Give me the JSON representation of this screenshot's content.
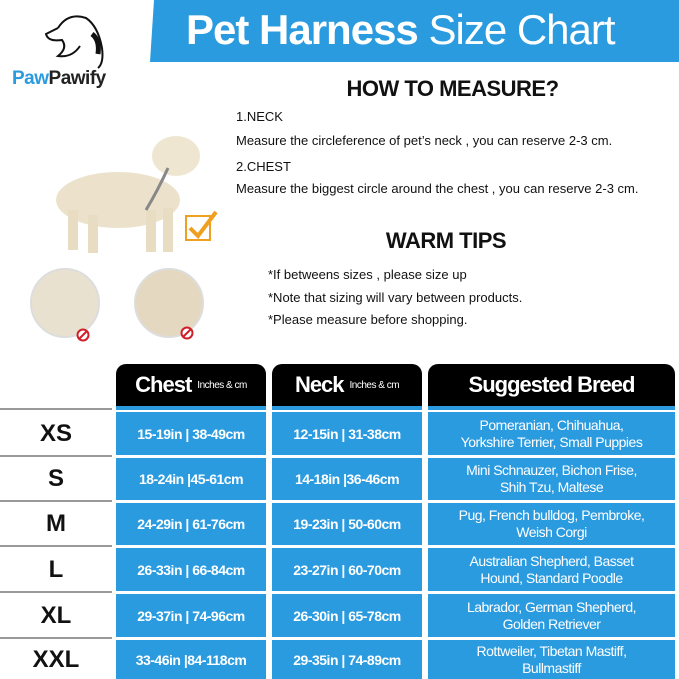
{
  "header": {
    "title_bold": "Pet Harness",
    "title_light": "Size Chart"
  },
  "logo": {
    "part1": "Paw",
    "part2": "Pawify"
  },
  "how_to_measure": {
    "heading": "HOW TO MEASURE?",
    "neck_label": "1.NECK",
    "neck_text": "Measure the circleference of pet’s neck , you can reserve 2-3 cm.",
    "chest_label": "2.CHEST",
    "chest_text": "Measure the biggest circle around the chest , you can reserve 2-3 cm."
  },
  "warm_tips": {
    "heading": "WARM TIPS",
    "tips": [
      "*If betweens sizes , please size up",
      "*Note that sizing will vary between products.",
      "*Please measure before shopping."
    ]
  },
  "table": {
    "columns": [
      {
        "label": "Chest",
        "unit": "Inches & cm"
      },
      {
        "label": "Neck",
        "unit": "Inches & cm"
      },
      {
        "label": "Suggested Breed",
        "unit": ""
      }
    ],
    "rows": [
      {
        "size": "XS",
        "chest": "15-19in | 38-49cm",
        "neck": "12-15in | 31-38cm",
        "breed1": "Pomeranian, Chihuahua,",
        "breed2": "Yorkshire Terrier, Small Puppies"
      },
      {
        "size": "S",
        "chest": "18-24in |45-61cm",
        "neck": "14-18in |36-46cm",
        "breed1": "Mini Schnauzer, Bichon Frise,",
        "breed2": "Shih Tzu, Maltese"
      },
      {
        "size": "M",
        "chest": "24-29in | 61-76cm",
        "neck": "19-23in | 50-60cm",
        "breed1": "Pug, French bulldog, Pembroke,",
        "breed2": "Weish Corgi"
      },
      {
        "size": "L",
        "chest": "26-33in | 66-84cm",
        "neck": "23-27in | 60-70cm",
        "breed1": "Australian Shepherd, Basset",
        "breed2": "Hound, Standard Poodle"
      },
      {
        "size": "XL",
        "chest": "29-37in | 74-96cm",
        "neck": "26-30in | 65-78cm",
        "breed1": "Labrador, German Shepherd,",
        "breed2": "Golden Retriever"
      },
      {
        "size": "XXL",
        "chest": "33-46in |84-118cm",
        "neck": "29-35in | 74-89cm",
        "breed1": "Rottweiler, Tibetan Mastiff,",
        "breed2": "Bullmastiff"
      }
    ]
  },
  "colors": {
    "accent": "#2b9be0",
    "header_bg": "#000000",
    "check": "#f0a020",
    "prohibit": "#d0202a"
  }
}
